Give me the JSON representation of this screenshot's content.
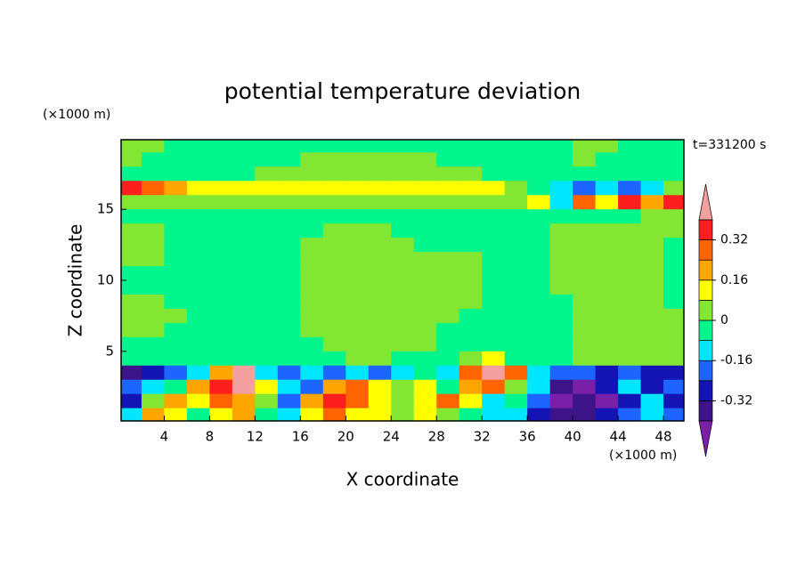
{
  "chart_data": {
    "type": "contour",
    "title": "potential temperature deviation",
    "xlabel": "X coordinate",
    "ylabel": "Z coordinate",
    "x_unit": "(×1000 m)",
    "y_unit": "(×1000 m)",
    "annotation": "t=331200 s",
    "xlim": [
      0.2,
      49.8
    ],
    "ylim": [
      0.1,
      19.9
    ],
    "xticks": [
      4,
      8,
      12,
      16,
      20,
      24,
      28,
      32,
      36,
      40,
      44,
      48
    ],
    "yticks": [
      5,
      10,
      15
    ],
    "x": [
      1,
      3,
      5,
      7,
      9,
      11,
      13,
      15,
      17,
      19,
      21,
      23,
      25,
      27,
      29,
      31,
      33,
      35,
      37,
      39,
      41,
      43,
      45,
      47,
      49
    ],
    "y": [
      19.5,
      18.5,
      17.5,
      16.5,
      15.5,
      14.5,
      13.5,
      12.5,
      11.5,
      10.5,
      9.5,
      8.5,
      7.5,
      6.5,
      5.5,
      4.5,
      3.5,
      2.5,
      1.5,
      0.5
    ],
    "z": [
      [
        0.04,
        0.04,
        -0.04,
        -0.04,
        -0.04,
        -0.04,
        -0.04,
        -0.04,
        -0.04,
        -0.04,
        -0.04,
        -0.04,
        -0.04,
        -0.04,
        -0.04,
        -0.04,
        -0.04,
        -0.04,
        -0.04,
        -0.04,
        0.04,
        0.04,
        -0.04,
        -0.04,
        -0.04
      ],
      [
        0.04,
        -0.04,
        -0.04,
        -0.04,
        -0.04,
        -0.04,
        -0.04,
        -0.04,
        0.04,
        0.04,
        0.04,
        0.04,
        0.04,
        0.04,
        -0.04,
        -0.04,
        -0.04,
        -0.04,
        -0.04,
        -0.04,
        0.04,
        -0.04,
        -0.04,
        -0.04,
        -0.04
      ],
      [
        -0.04,
        -0.04,
        -0.04,
        -0.04,
        -0.04,
        -0.04,
        0.04,
        0.04,
        0.04,
        0.04,
        0.04,
        0.04,
        0.04,
        0.04,
        0.04,
        0.04,
        -0.04,
        -0.04,
        -0.04,
        -0.04,
        -0.04,
        -0.04,
        -0.04,
        -0.04,
        -0.04
      ],
      [
        0.36,
        0.28,
        0.2,
        0.12,
        0.12,
        0.12,
        0.12,
        0.12,
        0.12,
        0.12,
        0.12,
        0.12,
        0.12,
        0.12,
        0.12,
        0.12,
        0.12,
        0.04,
        -0.04,
        -0.12,
        -0.2,
        -0.12,
        -0.2,
        -0.12,
        0.04
      ],
      [
        0.04,
        0.04,
        0.04,
        0.04,
        0.04,
        0.04,
        0.04,
        0.04,
        0.04,
        0.04,
        0.04,
        0.04,
        0.04,
        0.04,
        0.04,
        0.04,
        0.04,
        0.04,
        0.12,
        -0.12,
        0.28,
        0.12,
        0.36,
        0.2,
        0.36
      ],
      [
        -0.04,
        -0.04,
        -0.04,
        -0.04,
        -0.04,
        -0.04,
        -0.04,
        -0.04,
        -0.04,
        -0.04,
        -0.04,
        -0.04,
        -0.04,
        -0.04,
        -0.04,
        -0.04,
        -0.04,
        -0.04,
        -0.04,
        -0.04,
        -0.04,
        -0.04,
        -0.04,
        0.04,
        0.04
      ],
      [
        0.04,
        0.04,
        -0.04,
        -0.04,
        -0.04,
        -0.04,
        -0.04,
        -0.04,
        -0.04,
        0.04,
        0.04,
        0.04,
        -0.04,
        -0.04,
        -0.04,
        -0.04,
        -0.04,
        -0.04,
        -0.04,
        0.04,
        0.04,
        0.04,
        0.04,
        0.04,
        0.04
      ],
      [
        0.04,
        0.04,
        -0.04,
        -0.04,
        -0.04,
        -0.04,
        -0.04,
        -0.04,
        0.04,
        0.04,
        0.04,
        0.04,
        0.04,
        -0.04,
        -0.04,
        -0.04,
        -0.04,
        -0.04,
        -0.04,
        0.04,
        0.04,
        0.04,
        0.04,
        0.04,
        -0.04
      ],
      [
        0.04,
        0.04,
        -0.04,
        -0.04,
        -0.04,
        -0.04,
        -0.04,
        -0.04,
        0.04,
        0.04,
        0.04,
        0.04,
        0.04,
        0.04,
        0.04,
        0.04,
        -0.04,
        -0.04,
        -0.04,
        0.04,
        0.04,
        0.04,
        0.04,
        0.04,
        -0.04
      ],
      [
        -0.04,
        -0.04,
        -0.04,
        -0.04,
        -0.04,
        -0.04,
        -0.04,
        -0.04,
        0.04,
        0.04,
        0.04,
        0.04,
        0.04,
        0.04,
        0.04,
        0.04,
        -0.04,
        -0.04,
        -0.04,
        0.04,
        0.04,
        0.04,
        0.04,
        0.04,
        -0.04
      ],
      [
        -0.04,
        -0.04,
        -0.04,
        -0.04,
        -0.04,
        -0.04,
        -0.04,
        -0.04,
        0.04,
        0.04,
        0.04,
        0.04,
        0.04,
        0.04,
        0.04,
        0.04,
        -0.04,
        -0.04,
        -0.04,
        0.04,
        0.04,
        0.04,
        0.04,
        0.04,
        -0.04
      ],
      [
        0.04,
        0.04,
        -0.04,
        -0.04,
        -0.04,
        -0.04,
        -0.04,
        -0.04,
        0.04,
        0.04,
        0.04,
        0.04,
        0.04,
        0.04,
        0.04,
        0.04,
        -0.04,
        -0.04,
        -0.04,
        -0.04,
        0.04,
        0.04,
        0.04,
        0.04,
        -0.04
      ],
      [
        0.04,
        0.04,
        0.04,
        -0.04,
        -0.04,
        -0.04,
        -0.04,
        -0.04,
        0.04,
        0.04,
        0.04,
        0.04,
        0.04,
        0.04,
        0.04,
        -0.04,
        -0.04,
        -0.04,
        -0.04,
        -0.04,
        0.04,
        0.04,
        0.04,
        0.04,
        0.04
      ],
      [
        0.04,
        0.04,
        -0.04,
        -0.04,
        -0.04,
        -0.04,
        -0.04,
        -0.04,
        0.04,
        0.04,
        0.04,
        0.04,
        0.04,
        0.04,
        -0.04,
        -0.04,
        -0.04,
        -0.04,
        -0.04,
        -0.04,
        0.04,
        0.04,
        0.04,
        0.04,
        0.04
      ],
      [
        -0.04,
        -0.04,
        -0.04,
        -0.04,
        -0.04,
        -0.04,
        -0.04,
        -0.04,
        -0.04,
        0.04,
        0.04,
        0.04,
        0.04,
        0.04,
        -0.04,
        -0.04,
        -0.04,
        -0.04,
        -0.04,
        -0.04,
        0.04,
        0.04,
        0.04,
        0.04,
        0.04
      ],
      [
        -0.04,
        -0.04,
        -0.04,
        -0.04,
        -0.04,
        -0.04,
        -0.04,
        -0.04,
        -0.04,
        -0.04,
        0.04,
        0.04,
        -0.04,
        -0.04,
        -0.04,
        0.04,
        0.12,
        -0.04,
        -0.04,
        -0.04,
        0.04,
        0.04,
        0.04,
        0.04,
        0.04
      ],
      [
        -0.36,
        -0.28,
        -0.2,
        -0.12,
        0.2,
        0.45,
        -0.12,
        -0.2,
        -0.12,
        -0.2,
        -0.12,
        -0.2,
        -0.12,
        -0.04,
        -0.12,
        0.28,
        0.45,
        0.28,
        -0.12,
        -0.2,
        -0.2,
        -0.28,
        -0.2,
        -0.28,
        -0.28
      ],
      [
        -0.2,
        -0.12,
        -0.04,
        0.2,
        0.36,
        0.45,
        0.12,
        -0.12,
        -0.2,
        0.2,
        0.28,
        0.12,
        0.04,
        0.12,
        -0.04,
        0.2,
        0.28,
        0.04,
        -0.12,
        -0.36,
        -0.45,
        -0.28,
        -0.12,
        -0.28,
        -0.2
      ],
      [
        -0.28,
        0.04,
        0.2,
        0.12,
        0.28,
        0.2,
        0.04,
        -0.2,
        0.2,
        0.36,
        0.28,
        0.12,
        0.04,
        0.12,
        0.28,
        0.12,
        -0.12,
        -0.04,
        -0.2,
        -0.45,
        -0.36,
        -0.45,
        -0.28,
        -0.12,
        -0.28
      ],
      [
        -0.12,
        0.2,
        0.12,
        -0.04,
        0.12,
        0.2,
        -0.04,
        -0.12,
        0.12,
        0.28,
        0.12,
        0.12,
        0.04,
        0.12,
        0.04,
        -0.04,
        -0.12,
        -0.12,
        -0.28,
        -0.36,
        -0.36,
        -0.28,
        -0.2,
        -0.12,
        -0.2
      ]
    ],
    "levels": [
      -0.4,
      -0.32,
      -0.24,
      -0.16,
      -0.08,
      0,
      0.08,
      0.16,
      0.24,
      0.32,
      0.4
    ],
    "colors": [
      "#7a1fa8",
      "#3c1488",
      "#1414b4",
      "#1e64ff",
      "#00e6ff",
      "#00f58c",
      "#82e632",
      "#ffff00",
      "#ffa500",
      "#ff6400",
      "#ff1e1e",
      "#f5a0a0"
    ],
    "colorbar_ticks": [
      -0.32,
      -0.16,
      0,
      0.16,
      0.32
    ]
  }
}
